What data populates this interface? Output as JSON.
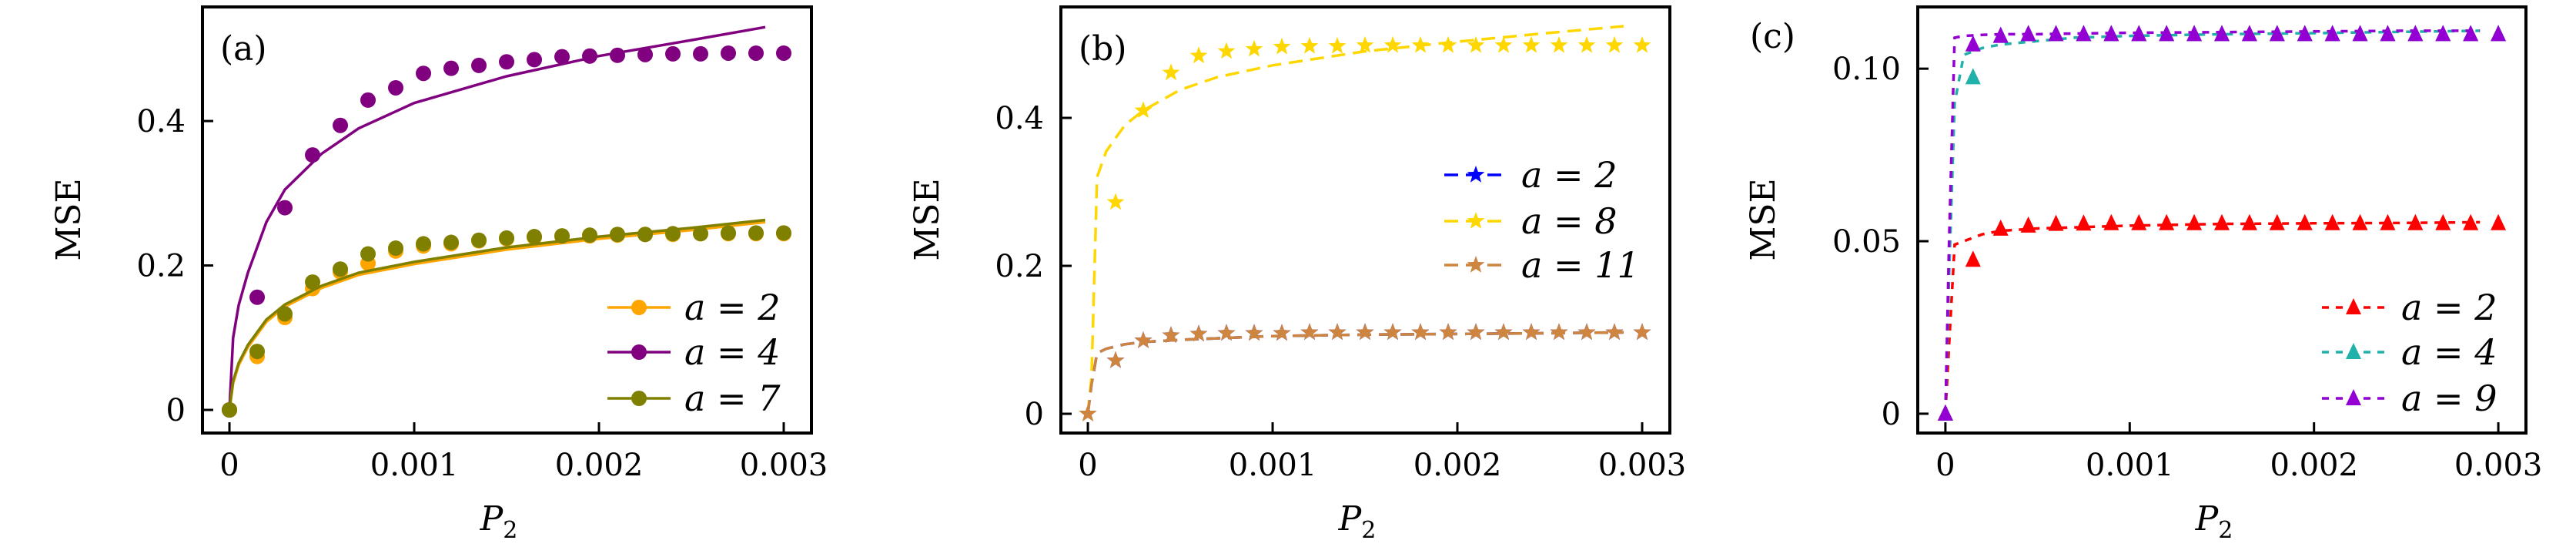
{
  "chart_data": [
    {
      "type": "line",
      "panel_label": "(a)",
      "xlabel": "P",
      "xlabel_sub": "2",
      "ylabel": "MSE",
      "xlim": [
        -0.000146,
        0.00315
      ],
      "ylim": [
        -0.032,
        0.558
      ],
      "xticks": [
        0,
        0.001,
        0.002,
        0.003
      ],
      "xtick_labels": [
        "0",
        "0.001",
        "0.002",
        "0.003"
      ],
      "yticks": [
        0,
        0.2,
        0.4
      ],
      "ytick_labels": [
        "0",
        "0.2",
        "0.4"
      ],
      "legend_position": "bottom-right",
      "line_style": "solid",
      "marker": "circle",
      "x": [
        0,
        0.00015,
        0.0003,
        0.00045,
        0.0006,
        0.00075,
        0.0009,
        0.00105,
        0.0012,
        0.00135,
        0.0015,
        0.00165,
        0.0018,
        0.00195,
        0.0021,
        0.00225,
        0.0024,
        0.00255,
        0.0027,
        0.00285,
        0.003
      ],
      "curve_x": [
        0,
        2e-05,
        5e-05,
        0.0001,
        0.0002,
        0.0003,
        0.0005,
        0.0007,
        0.001,
        0.0015,
        0.002,
        0.0025,
        0.0029
      ],
      "series": [
        {
          "name": "a = 2",
          "color": "#FFA500",
          "values": [
            0,
            0.074,
            0.128,
            0.168,
            0.191,
            0.203,
            0.22,
            0.227,
            0.23,
            0.234,
            0.237,
            0.239,
            0.24,
            0.241,
            0.242,
            0.243,
            0.243,
            0.244,
            0.244,
            0.244,
            0.244
          ],
          "curve": [
            0,
            0.037,
            0.062,
            0.087,
            0.122,
            0.143,
            0.169,
            0.187,
            0.202,
            0.222,
            0.237,
            0.249,
            0.26
          ]
        },
        {
          "name": "a = 4",
          "color": "#800080",
          "values": [
            0,
            0.156,
            0.28,
            0.353,
            0.394,
            0.429,
            0.446,
            0.466,
            0.473,
            0.477,
            0.482,
            0.485,
            0.489,
            0.49,
            0.491,
            0.492,
            0.493,
            0.493,
            0.494,
            0.494,
            0.494
          ],
          "curve": [
            0,
            0.1,
            0.145,
            0.19,
            0.26,
            0.305,
            0.355,
            0.39,
            0.425,
            0.462,
            0.49,
            0.512,
            0.53
          ]
        },
        {
          "name": "a = 7",
          "color": "#808000",
          "values": [
            0,
            0.081,
            0.133,
            0.177,
            0.195,
            0.216,
            0.224,
            0.23,
            0.232,
            0.235,
            0.238,
            0.24,
            0.241,
            0.242,
            0.243,
            0.243,
            0.244,
            0.244,
            0.245,
            0.245,
            0.245
          ],
          "curve": [
            0,
            0.04,
            0.065,
            0.09,
            0.125,
            0.146,
            0.172,
            0.19,
            0.205,
            0.225,
            0.24,
            0.252,
            0.263
          ]
        }
      ]
    },
    {
      "type": "line",
      "panel_label": "(b)",
      "xlabel": "P",
      "xlabel_sub": "2",
      "ylabel": "MSE",
      "xlim": [
        -0.000146,
        0.00315
      ],
      "ylim": [
        -0.026,
        0.55
      ],
      "xticks": [
        0,
        0.001,
        0.002,
        0.003
      ],
      "xtick_labels": [
        "0",
        "0.001",
        "0.002",
        "0.003"
      ],
      "yticks": [
        0,
        0.2,
        0.4
      ],
      "ytick_labels": [
        "0",
        "0.2",
        "0.4"
      ],
      "legend_position": "center-right",
      "line_style": "dashed",
      "marker": "star",
      "x": [
        0,
        0.00015,
        0.0003,
        0.00045,
        0.0006,
        0.00075,
        0.0009,
        0.00105,
        0.0012,
        0.00135,
        0.0015,
        0.00165,
        0.0018,
        0.00195,
        0.0021,
        0.00225,
        0.0024,
        0.00255,
        0.0027,
        0.00285,
        0.003
      ],
      "curve_x": [
        0,
        2e-05,
        5e-05,
        0.0001,
        0.0002,
        0.0003,
        0.0005,
        0.0007,
        0.001,
        0.0015,
        0.002,
        0.0025,
        0.0029
      ],
      "series": [
        {
          "name": "a = 2",
          "color": "#0000FF",
          "values": [
            0,
            0.072,
            0.099,
            0.106,
            0.108,
            0.109,
            0.109,
            0.109,
            0.11,
            0.11,
            0.11,
            0.11,
            0.11,
            0.11,
            0.11,
            0.11,
            0.11,
            0.11,
            0.11,
            0.11,
            0.11
          ],
          "curve": [
            0,
            0.04,
            0.082,
            0.088,
            0.094,
            0.097,
            0.1,
            0.102,
            0.105,
            0.107,
            0.108,
            0.109,
            0.11
          ]
        },
        {
          "name": "a = 8",
          "color": "#FFD700",
          "values": [
            0,
            0.286,
            0.41,
            0.461,
            0.484,
            0.49,
            0.493,
            0.496,
            0.497,
            0.497,
            0.498,
            0.498,
            0.498,
            0.498,
            0.498,
            0.498,
            0.498,
            0.498,
            0.498,
            0.498,
            0.498
          ],
          "curve": [
            0,
            0.05,
            0.32,
            0.355,
            0.39,
            0.41,
            0.438,
            0.455,
            0.471,
            0.49,
            0.503,
            0.515,
            0.524
          ]
        },
        {
          "name": "a = 11",
          "color": "#CD853F",
          "values": [
            0,
            0.072,
            0.099,
            0.106,
            0.108,
            0.109,
            0.109,
            0.109,
            0.11,
            0.11,
            0.11,
            0.11,
            0.11,
            0.11,
            0.11,
            0.11,
            0.11,
            0.11,
            0.11,
            0.11,
            0.11
          ],
          "curve": [
            0,
            0.04,
            0.082,
            0.088,
            0.094,
            0.097,
            0.1,
            0.102,
            0.105,
            0.107,
            0.108,
            0.109,
            0.11
          ]
        }
      ]
    },
    {
      "type": "line",
      "panel_label": "(c)",
      "xlabel": "P",
      "xlabel_sub": "2",
      "ylabel": "MSE",
      "xlim": [
        -0.00015,
        0.00315
      ],
      "ylim": [
        -0.0056,
        0.1179
      ],
      "xticks": [
        0,
        0.001,
        0.002,
        0.003
      ],
      "xtick_labels": [
        "0",
        "0.001",
        "0.002",
        "0.003"
      ],
      "yticks": [
        0,
        0.05,
        0.1
      ],
      "ytick_labels": [
        "0",
        "0.05",
        "0.10"
      ],
      "legend_position": "bottom-right",
      "line_style": "dashed",
      "marker": "triangle",
      "x": [
        0,
        0.00015,
        0.0003,
        0.00045,
        0.0006,
        0.00075,
        0.0009,
        0.00105,
        0.0012,
        0.00135,
        0.0015,
        0.00165,
        0.0018,
        0.00195,
        0.0021,
        0.00225,
        0.0024,
        0.00255,
        0.0027,
        0.00285,
        0.003
      ],
      "curve_x": [
        0,
        2e-05,
        5e-05,
        0.0001,
        0.0002,
        0.0003,
        0.0005,
        0.0007,
        0.001,
        0.0015,
        0.002,
        0.0025,
        0.0029
      ],
      "series": [
        {
          "name": "a = 2",
          "color": "#FF0000",
          "values": [
            0,
            0.0446,
            0.0536,
            0.0545,
            0.055,
            0.0551,
            0.0552,
            0.0552,
            0.0552,
            0.0552,
            0.0552,
            0.0552,
            0.0552,
            0.0552,
            0.0552,
            0.0552,
            0.0552,
            0.0552,
            0.0552,
            0.0552,
            0.0552
          ],
          "curve": [
            0,
            0.02,
            0.049,
            0.05,
            0.052,
            0.053,
            0.0537,
            0.054,
            0.0545,
            0.055,
            0.0552,
            0.0553,
            0.0555
          ]
        },
        {
          "name": "a = 4",
          "color": "#20B2AA",
          "values": [
            0,
            0.0975,
            0.1095,
            0.11,
            0.11,
            0.11,
            0.11,
            0.11,
            0.11,
            0.11,
            0.11,
            0.11,
            0.11,
            0.11,
            0.11,
            0.11,
            0.11,
            0.11,
            0.11,
            0.11,
            0.11
          ],
          "curve": [
            0,
            0.04,
            0.09,
            0.104,
            0.106,
            0.107,
            0.108,
            0.109,
            0.1095,
            0.11,
            0.1103,
            0.1107,
            0.111
          ]
        },
        {
          "name": "a = 9",
          "color": "#9400D3",
          "values": [
            0,
            0.107,
            0.1095,
            0.11,
            0.11,
            0.11,
            0.11,
            0.11,
            0.11,
            0.11,
            0.11,
            0.11,
            0.11,
            0.11,
            0.11,
            0.11,
            0.11,
            0.11,
            0.11,
            0.11,
            0.11
          ],
          "curve": [
            0,
            0.05,
            0.109,
            0.1095,
            0.1098,
            0.11,
            0.11,
            0.1102,
            0.1104,
            0.1106,
            0.1108,
            0.111,
            0.111
          ]
        }
      ]
    }
  ]
}
